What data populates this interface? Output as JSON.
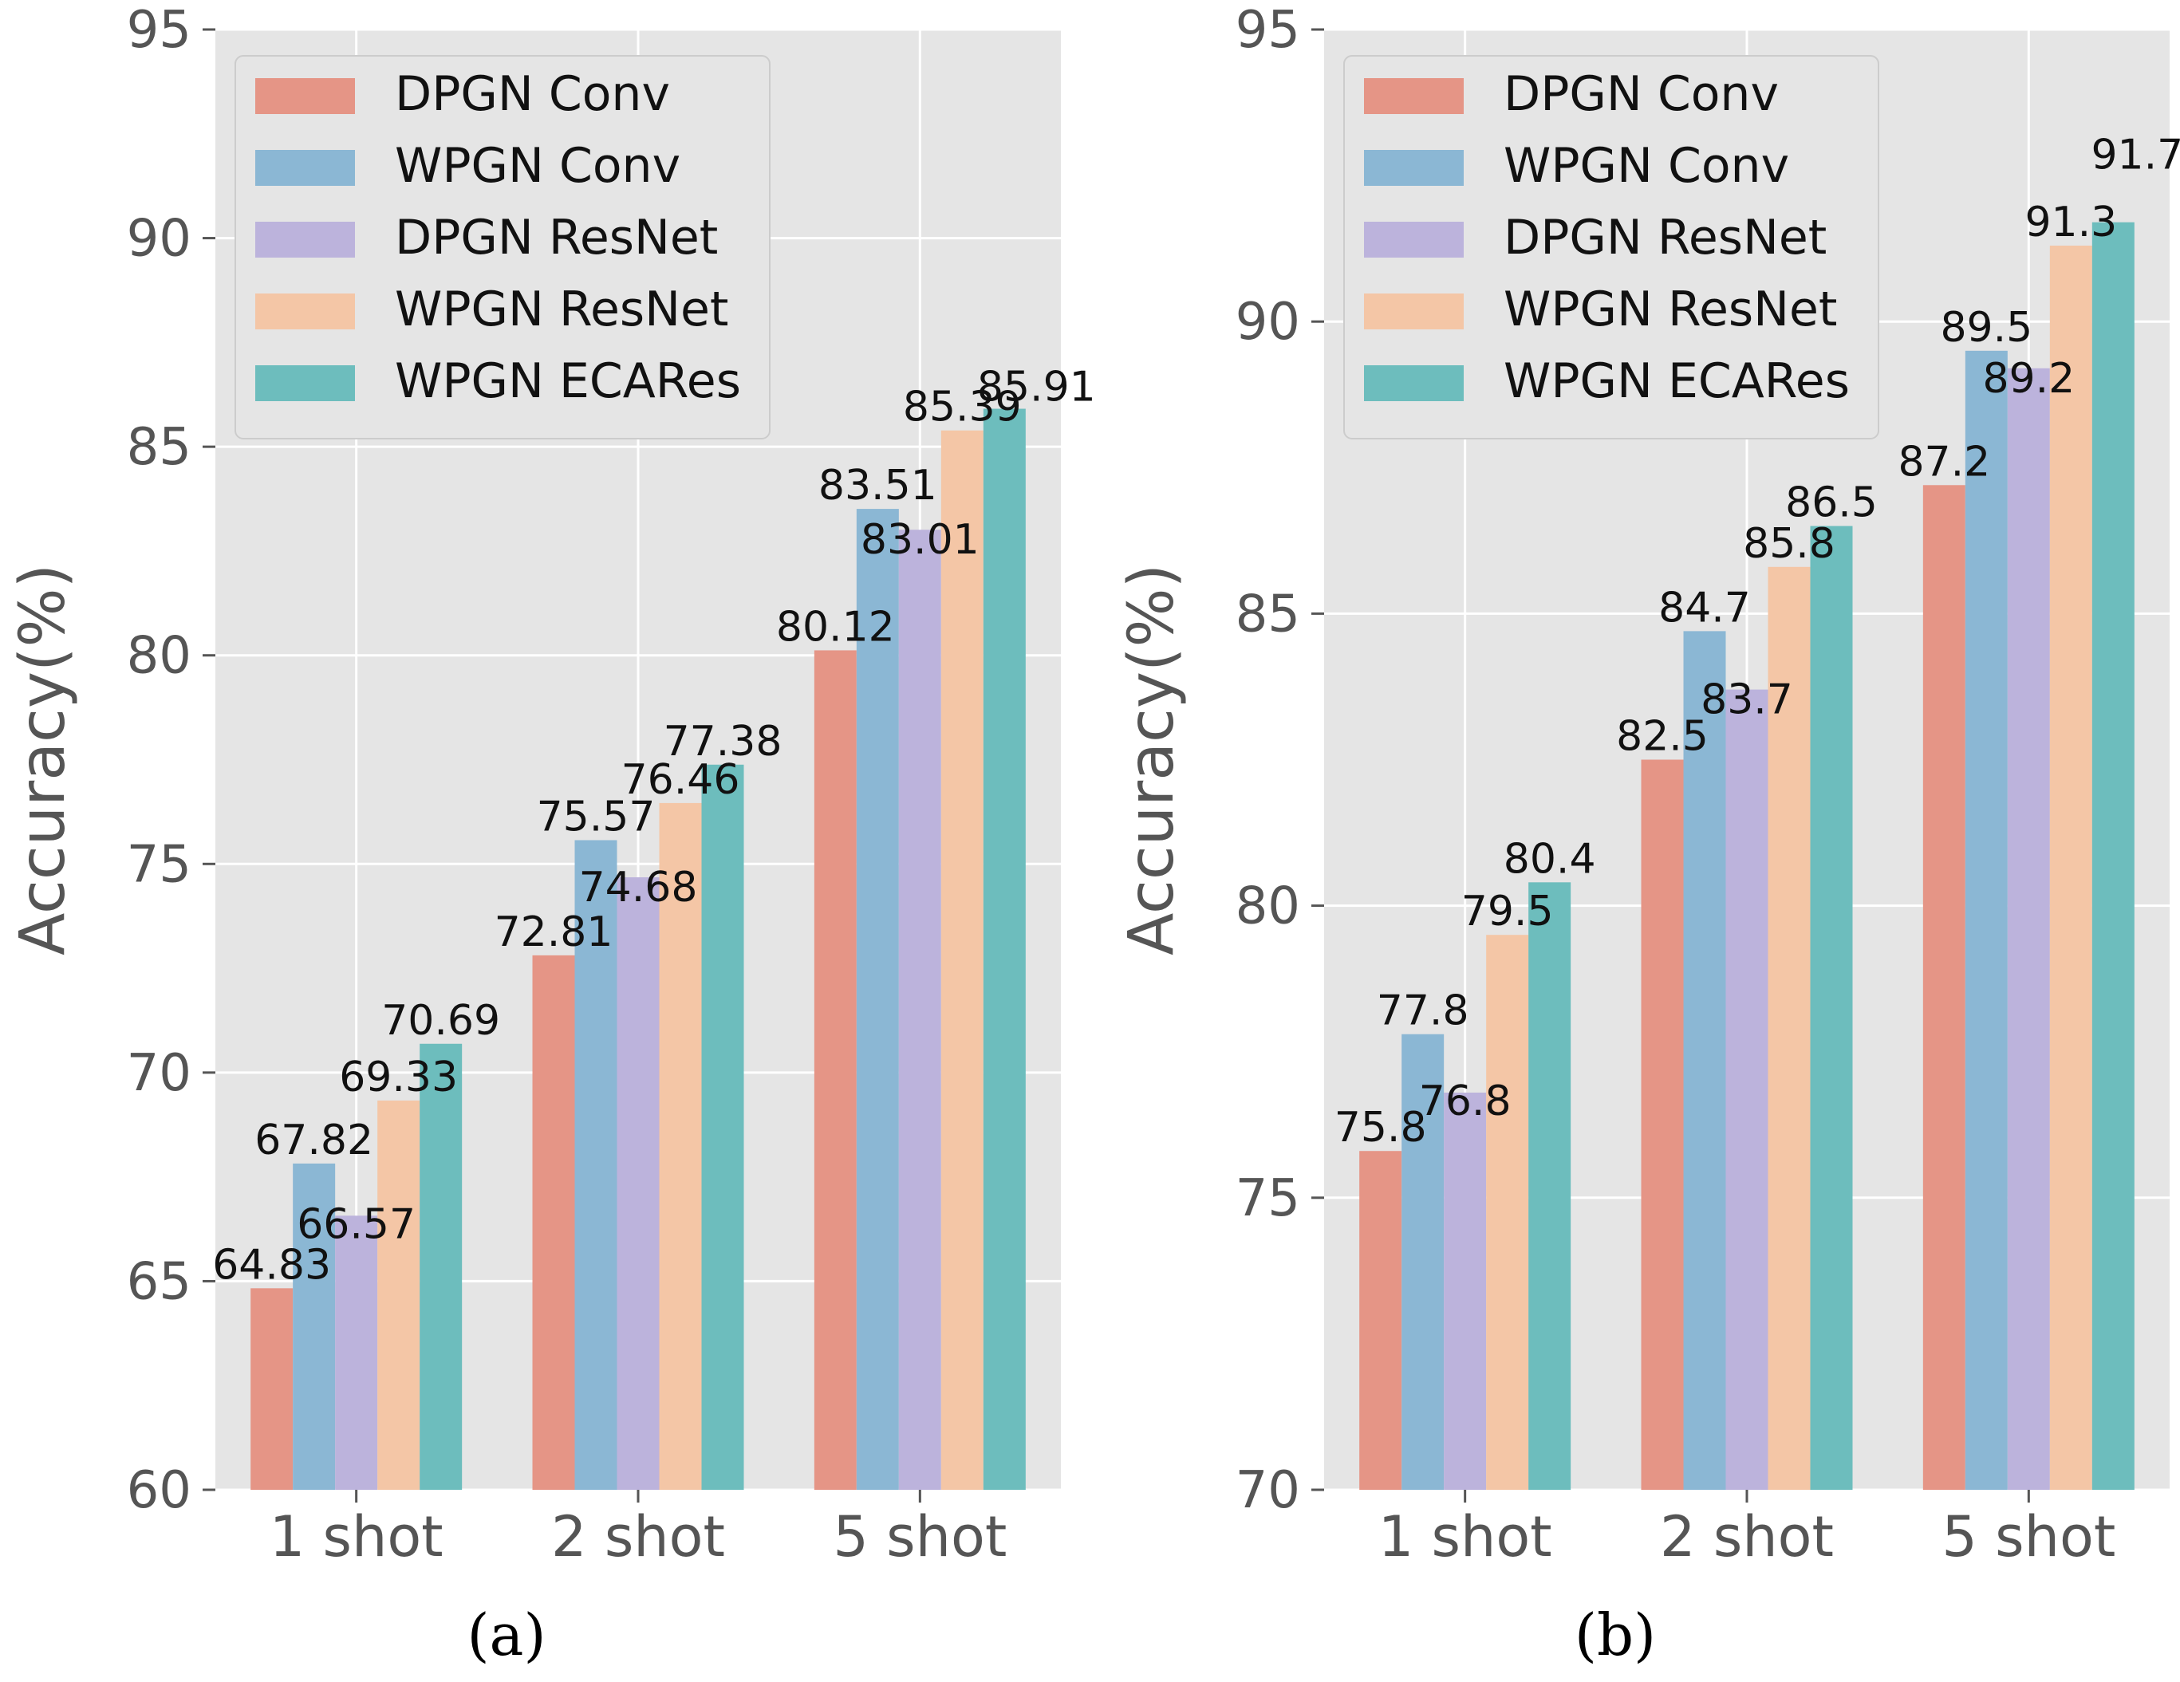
{
  "colors": {
    "panel_background": "#e5e5e5",
    "grid": "#ffffff",
    "axis_text": "#555555",
    "series": [
      "#e59586",
      "#8bb7d4",
      "#bcb3dc",
      "#f4c6a6",
      "#6dbdbd"
    ]
  },
  "chart_data": [
    {
      "type": "bar",
      "panel_label": "(a)",
      "categories": [
        "1 shot",
        "2 shot",
        "5 shot"
      ],
      "series": [
        {
          "name": "DPGN Conv",
          "values": [
            64.83,
            72.81,
            80.12
          ]
        },
        {
          "name": "WPGN Conv",
          "values": [
            67.82,
            75.57,
            83.51
          ]
        },
        {
          "name": "DPGN ResNet",
          "values": [
            66.57,
            74.68,
            83.01
          ]
        },
        {
          "name": "WPGN ResNet",
          "values": [
            69.33,
            76.46,
            85.39
          ]
        },
        {
          "name": "WPGN ECARes",
          "values": [
            70.69,
            77.38,
            85.91
          ]
        }
      ],
      "value_labels": [
        [
          "64.83",
          "72.81",
          "80.12"
        ],
        [
          "67.82",
          "75.57",
          "83.51"
        ],
        [
          "66.57",
          "74.68",
          "83.01"
        ],
        [
          "69.33",
          "76.46",
          "85.39"
        ],
        [
          "70.69",
          "77.38",
          "85.91"
        ]
      ],
      "ylabel": "Accuracy(%)",
      "xlabel": "",
      "ylim": [
        60,
        95
      ],
      "yticks": [
        "60",
        "65",
        "70",
        "75",
        "80",
        "85",
        "90",
        "95"
      ],
      "grid": true,
      "legend_position": "top-left"
    },
    {
      "type": "bar",
      "panel_label": "(b)",
      "categories": [
        "1 shot",
        "2 shot",
        "5 shot"
      ],
      "series": [
        {
          "name": "DPGN Conv",
          "values": [
            75.8,
            82.5,
            87.2
          ]
        },
        {
          "name": "WPGN Conv",
          "values": [
            77.8,
            84.7,
            89.5
          ]
        },
        {
          "name": "DPGN ResNet",
          "values": [
            76.8,
            83.7,
            89.2
          ]
        },
        {
          "name": "WPGN ResNet",
          "values": [
            79.5,
            85.8,
            91.3
          ]
        },
        {
          "name": "WPGN ECARes",
          "values": [
            80.4,
            86.5,
            91.7
          ]
        }
      ],
      "value_labels": [
        [
          "75.8",
          "82.5",
          "87.2"
        ],
        [
          "77.8",
          "84.7",
          "89.5"
        ],
        [
          "76.8",
          "83.7",
          "89.2"
        ],
        [
          "79.5",
          "85.8",
          "91.3"
        ],
        [
          "80.4",
          "86.5",
          "91.7"
        ]
      ],
      "ylabel": "Accuracy(%)",
      "xlabel": "",
      "ylim": [
        70,
        95
      ],
      "yticks": [
        "70",
        "75",
        "80",
        "85",
        "90",
        "95"
      ],
      "grid": true,
      "legend_position": "top-left"
    }
  ]
}
